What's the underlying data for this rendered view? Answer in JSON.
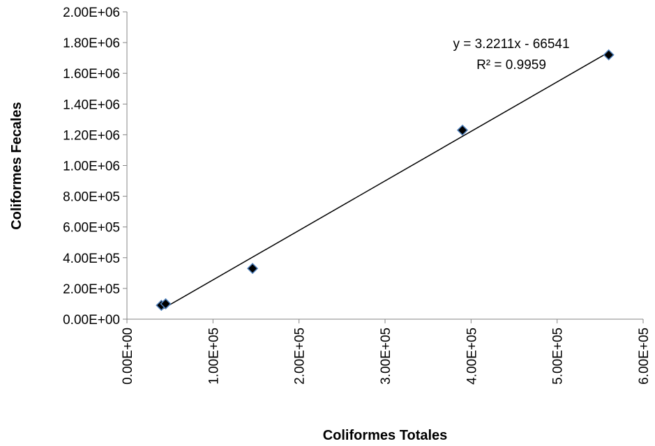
{
  "chart_data": {
    "type": "scatter",
    "title": "",
    "xlabel": "Coliformes Totales",
    "ylabel": "Coliformes Fecales",
    "xlim": [
      0,
      600000
    ],
    "ylim": [
      0,
      2000000
    ],
    "x_ticks": [
      {
        "value": 0,
        "label": "0.00E+00"
      },
      {
        "value": 100000,
        "label": "1.00E+05"
      },
      {
        "value": 200000,
        "label": "2.00E+05"
      },
      {
        "value": 300000,
        "label": "3.00E+05"
      },
      {
        "value": 400000,
        "label": "4.00E+05"
      },
      {
        "value": 500000,
        "label": "5.00E+05"
      },
      {
        "value": 600000,
        "label": "6.00E+05"
      }
    ],
    "y_ticks": [
      {
        "value": 0,
        "label": "0.00E+00"
      },
      {
        "value": 200000,
        "label": "2.00E+05"
      },
      {
        "value": 400000,
        "label": "4.00E+05"
      },
      {
        "value": 600000,
        "label": "6.00E+05"
      },
      {
        "value": 800000,
        "label": "8.00E+05"
      },
      {
        "value": 1000000,
        "label": "1.00E+06"
      },
      {
        "value": 1200000,
        "label": "1.20E+06"
      },
      {
        "value": 1400000,
        "label": "1.40E+06"
      },
      {
        "value": 1600000,
        "label": "1.60E+06"
      },
      {
        "value": 1800000,
        "label": "1.80E+06"
      },
      {
        "value": 2000000,
        "label": "2.00E+06"
      }
    ],
    "points": [
      {
        "x": 40000,
        "y": 90000
      },
      {
        "x": 45000,
        "y": 100000
      },
      {
        "x": 146000,
        "y": 330000
      },
      {
        "x": 390000,
        "y": 1230000
      },
      {
        "x": 560000,
        "y": 1720000
      }
    ],
    "trendline": {
      "slope": 3.2211,
      "intercept": -66541,
      "x_range": [
        40000,
        560000
      ],
      "equation_label": "y = 3.2211x - 66541",
      "r2_label": "R² = 0.9959"
    },
    "grid": false,
    "legend": "none",
    "colors": {
      "marker_fill": "#000000",
      "marker_stroke": "#4f81bd",
      "line": "#000000",
      "axis": "#868686"
    }
  }
}
